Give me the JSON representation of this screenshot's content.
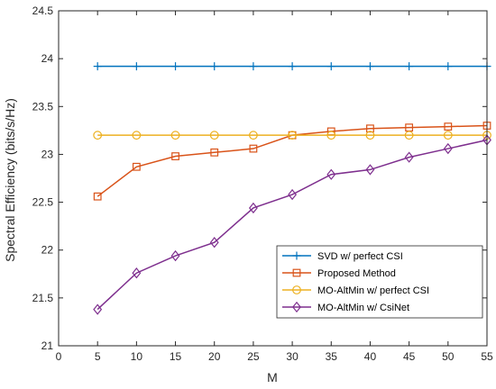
{
  "chart_data": {
    "type": "line",
    "title": "",
    "xlabel": "M",
    "ylabel": "Spectral Efficiency (bits/s/Hz)",
    "xlim": [
      0,
      55
    ],
    "ylim": [
      21,
      24.5
    ],
    "xticks": [
      0,
      5,
      10,
      15,
      20,
      25,
      30,
      35,
      40,
      45,
      50,
      55
    ],
    "yticks": [
      21,
      21.5,
      22,
      22.5,
      23,
      23.5,
      24,
      24.5
    ],
    "grid": false,
    "legend_position": "lower-right",
    "x": [
      5,
      10,
      15,
      20,
      25,
      30,
      35,
      40,
      45,
      50,
      55
    ],
    "series": [
      {
        "name": "SVD w/ perfect CSI",
        "color": "#0072BD",
        "marker": "plus",
        "values": [
          23.92,
          23.92,
          23.92,
          23.92,
          23.92,
          23.92,
          23.92,
          23.92,
          23.92,
          23.92,
          23.92
        ]
      },
      {
        "name": "Proposed Method",
        "color": "#D95319",
        "marker": "square",
        "values": [
          22.56,
          22.87,
          22.98,
          23.02,
          23.06,
          23.2,
          23.24,
          23.27,
          23.28,
          23.29,
          23.3
        ]
      },
      {
        "name": "MO-AltMin w/ perfect CSI",
        "color": "#EDB120",
        "marker": "circle",
        "values": [
          23.2,
          23.2,
          23.2,
          23.2,
          23.2,
          23.2,
          23.2,
          23.2,
          23.2,
          23.2,
          23.2
        ]
      },
      {
        "name": "MO-AltMin w/ CsiNet",
        "color": "#7E2F8E",
        "marker": "diamond",
        "values": [
          21.38,
          21.76,
          21.94,
          22.08,
          22.44,
          22.58,
          22.79,
          22.84,
          22.97,
          23.06,
          23.15
        ]
      }
    ]
  }
}
